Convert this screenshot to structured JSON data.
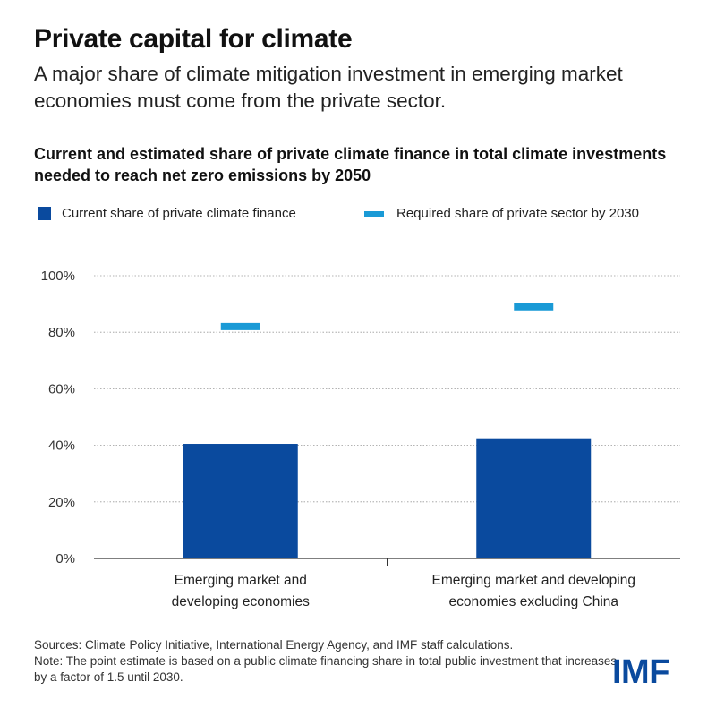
{
  "header": {
    "title": "Private capital for climate",
    "subtitle": "A major share of climate mitigation investment in emerging market economies must come from the private sector."
  },
  "chart_data": {
    "type": "bar",
    "title": "Current and estimated share of private climate finance in total climate investments needed to reach net zero emissions by 2050",
    "categories": [
      "Emerging market and developing economies",
      "Emerging market and developing economies excluding China"
    ],
    "category_lines": [
      [
        "Emerging market and",
        "developing economies"
      ],
      [
        "Emerging market and developing",
        "economies excluding China"
      ]
    ],
    "series": [
      {
        "name": "Current share of private climate finance",
        "mark": "bar",
        "color": "#0a4a9e",
        "values": [
          40.5,
          42.5
        ]
      },
      {
        "name": "Required share of private sector by 2030",
        "mark": "dash",
        "color": "#1a9ad6",
        "values": [
          82,
          89
        ]
      }
    ],
    "ylim": [
      0,
      100
    ],
    "yticks": [
      0,
      20,
      40,
      60,
      80,
      100
    ],
    "ytick_labels": [
      "0%",
      "20%",
      "40%",
      "60%",
      "80%",
      "100%"
    ],
    "grid": true,
    "legend_position": "top-left"
  },
  "footer": {
    "sources": "Sources: Climate Policy Initiative, International Energy Agency, and IMF staff calculations.",
    "note": "Note: The point estimate is based on a public climate financing share in total public investment that increases by a factor of 1.5 until 2030."
  },
  "logo": {
    "text": "IMF",
    "color": "#0a4a9e"
  }
}
